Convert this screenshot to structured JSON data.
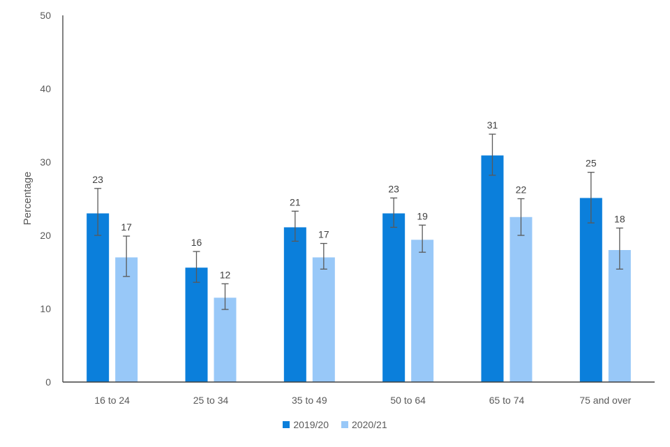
{
  "chart_data": {
    "type": "bar",
    "title": "",
    "xlabel": "",
    "ylabel": "Percentage",
    "ylim": [
      0,
      50
    ],
    "yticks": [
      0,
      10,
      20,
      30,
      40,
      50
    ],
    "grid": false,
    "legend_position": "bottom",
    "categories": [
      "16 to 24",
      "25 to 34",
      "35 to 49",
      "50 to 64",
      "65 to 74",
      "75 and over"
    ],
    "series": [
      {
        "name": "2019/20",
        "color": "#0B7FDB",
        "values": [
          23.0,
          15.6,
          21.1,
          23.0,
          30.9,
          25.1
        ],
        "labels": [
          "23",
          "16",
          "21",
          "23",
          "31",
          "25"
        ],
        "error_low": [
          20.0,
          13.6,
          19.2,
          21.1,
          28.2,
          21.7
        ],
        "error_high": [
          26.4,
          17.8,
          23.3,
          25.1,
          33.8,
          28.6
        ]
      },
      {
        "name": "2020/21",
        "color": "#98C8F8",
        "values": [
          17.0,
          11.5,
          17.0,
          19.4,
          22.5,
          18.0
        ],
        "labels": [
          "17",
          "12",
          "17",
          "19",
          "22",
          "18"
        ],
        "error_low": [
          14.4,
          9.9,
          15.4,
          17.7,
          20.0,
          15.4
        ],
        "error_high": [
          19.9,
          13.4,
          18.9,
          21.4,
          25.0,
          21.0
        ]
      }
    ]
  },
  "legend": {
    "items": [
      {
        "label": "2019/20",
        "color": "#0B7FDB"
      },
      {
        "label": "2020/21",
        "color": "#98C8F8"
      }
    ]
  }
}
